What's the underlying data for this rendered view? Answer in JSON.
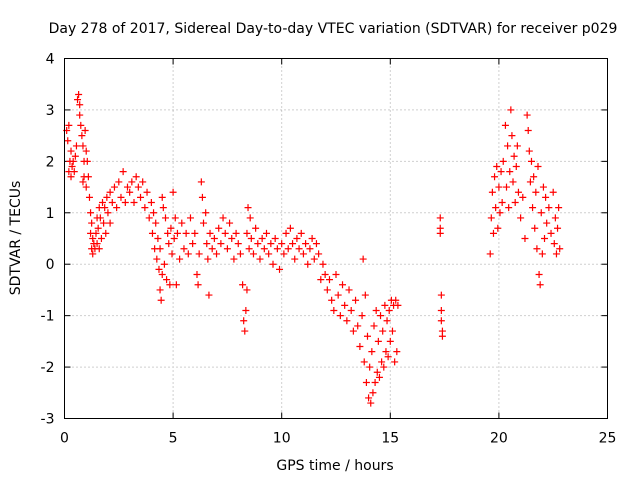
{
  "chart_data": {
    "type": "scatter",
    "title": "Day 278 of 2017, Sidereal Day-to-day VTEC variation (SDTVAR) for receiver p029",
    "xlabel": "GPS time / hours",
    "ylabel": "SDTVAR / TECUs",
    "xlim": [
      0,
      25
    ],
    "ylim": [
      -3,
      4
    ],
    "xticks": [
      0,
      5,
      10,
      15,
      20,
      25
    ],
    "yticks": [
      -3,
      -2,
      -1,
      0,
      1,
      2,
      3,
      4
    ],
    "grid": true,
    "marker": "+",
    "color": "#ff0000",
    "series": [
      {
        "name": "SDTVAR",
        "points": [
          [
            0.1,
            2.6
          ],
          [
            0.15,
            2.4
          ],
          [
            0.2,
            2.7
          ],
          [
            0.2,
            1.8
          ],
          [
            0.25,
            2.0
          ],
          [
            0.3,
            2.2
          ],
          [
            0.3,
            1.7
          ],
          [
            0.35,
            1.9
          ],
          [
            0.4,
            2.0
          ],
          [
            0.45,
            1.8
          ],
          [
            0.5,
            2.1
          ],
          [
            0.55,
            2.3
          ],
          [
            0.6,
            3.2
          ],
          [
            0.65,
            3.3
          ],
          [
            0.7,
            3.1
          ],
          [
            0.7,
            2.9
          ],
          [
            0.75,
            2.7
          ],
          [
            0.8,
            2.5
          ],
          [
            0.85,
            2.3
          ],
          [
            0.85,
            1.6
          ],
          [
            0.9,
            2.0
          ],
          [
            0.9,
            1.7
          ],
          [
            0.95,
            2.6
          ],
          [
            1.0,
            2.2
          ],
          [
            1.0,
            1.5
          ],
          [
            1.05,
            2.0
          ],
          [
            1.1,
            1.7
          ],
          [
            1.15,
            1.3
          ],
          [
            1.2,
            1.0
          ],
          [
            1.2,
            0.6
          ],
          [
            1.25,
            0.8
          ],
          [
            1.25,
            0.3
          ],
          [
            1.3,
            0.5
          ],
          [
            1.3,
            0.2
          ],
          [
            1.35,
            0.4
          ],
          [
            1.4,
            0.3
          ],
          [
            1.45,
            0.6
          ],
          [
            1.5,
            0.9
          ],
          [
            1.5,
            0.4
          ],
          [
            1.55,
            0.7
          ],
          [
            1.6,
            1.1
          ],
          [
            1.6,
            0.3
          ],
          [
            1.65,
            0.9
          ],
          [
            1.7,
            0.5
          ],
          [
            1.75,
            1.2
          ],
          [
            1.8,
            0.8
          ],
          [
            1.85,
            1.1
          ],
          [
            1.9,
            0.6
          ],
          [
            1.95,
            1.3
          ],
          [
            2.0,
            1.0
          ],
          [
            2.1,
            1.4
          ],
          [
            2.1,
            0.8
          ],
          [
            2.2,
            1.2
          ],
          [
            2.3,
            1.5
          ],
          [
            2.4,
            1.1
          ],
          [
            2.5,
            1.6
          ],
          [
            2.6,
            1.3
          ],
          [
            2.7,
            1.8
          ],
          [
            2.8,
            1.2
          ],
          [
            2.9,
            1.5
          ],
          [
            3.0,
            1.4
          ],
          [
            3.1,
            1.6
          ],
          [
            3.2,
            1.2
          ],
          [
            3.3,
            1.7
          ],
          [
            3.4,
            1.5
          ],
          [
            3.5,
            1.3
          ],
          [
            3.6,
            1.6
          ],
          [
            3.7,
            1.1
          ],
          [
            3.8,
            1.4
          ],
          [
            3.9,
            0.9
          ],
          [
            4.0,
            1.2
          ],
          [
            4.05,
            0.6
          ],
          [
            4.1,
            1.0
          ],
          [
            4.15,
            0.3
          ],
          [
            4.2,
            0.8
          ],
          [
            4.25,
            0.1
          ],
          [
            4.3,
            0.5
          ],
          [
            4.35,
            -0.1
          ],
          [
            4.4,
            0.3
          ],
          [
            4.4,
            -0.5
          ],
          [
            4.45,
            -0.7
          ],
          [
            4.5,
            1.3
          ],
          [
            4.5,
            -0.2
          ],
          [
            4.55,
            1.1
          ],
          [
            4.6,
            0.0
          ],
          [
            4.65,
            0.9
          ],
          [
            4.7,
            -0.3
          ],
          [
            4.75,
            0.6
          ],
          [
            4.8,
            0.4
          ],
          [
            4.85,
            -0.4
          ],
          [
            4.9,
            0.7
          ],
          [
            4.95,
            0.2
          ],
          [
            5.0,
            1.4
          ],
          [
            5.05,
            0.5
          ],
          [
            5.1,
            0.9
          ],
          [
            5.15,
            -0.4
          ],
          [
            5.2,
            0.6
          ],
          [
            5.3,
            0.1
          ],
          [
            5.4,
            0.8
          ],
          [
            5.5,
            0.3
          ],
          [
            5.6,
            0.6
          ],
          [
            5.7,
            0.2
          ],
          [
            5.8,
            0.9
          ],
          [
            5.9,
            0.4
          ],
          [
            6.0,
            0.6
          ],
          [
            6.1,
            -0.2
          ],
          [
            6.15,
            -0.4
          ],
          [
            6.2,
            0.2
          ],
          [
            6.3,
            1.6
          ],
          [
            6.35,
            1.3
          ],
          [
            6.4,
            0.8
          ],
          [
            6.5,
            1.0
          ],
          [
            6.55,
            0.4
          ],
          [
            6.6,
            0.1
          ],
          [
            6.65,
            -0.6
          ],
          [
            6.7,
            0.6
          ],
          [
            6.8,
            0.3
          ],
          [
            6.9,
            0.5
          ],
          [
            7.0,
            0.2
          ],
          [
            7.1,
            0.7
          ],
          [
            7.2,
            0.4
          ],
          [
            7.3,
            0.9
          ],
          [
            7.4,
            0.6
          ],
          [
            7.5,
            0.3
          ],
          [
            7.6,
            0.8
          ],
          [
            7.7,
            0.5
          ],
          [
            7.8,
            0.1
          ],
          [
            7.9,
            0.6
          ],
          [
            8.0,
            0.4
          ],
          [
            8.1,
            0.2
          ],
          [
            8.2,
            -0.4
          ],
          [
            8.25,
            -1.1
          ],
          [
            8.3,
            -1.3
          ],
          [
            8.35,
            -0.9
          ],
          [
            8.4,
            -0.5
          ],
          [
            8.4,
            0.6
          ],
          [
            8.45,
            1.1
          ],
          [
            8.5,
            0.3
          ],
          [
            8.55,
            0.9
          ],
          [
            8.6,
            0.5
          ],
          [
            8.7,
            0.2
          ],
          [
            8.8,
            0.7
          ],
          [
            8.9,
            0.4
          ],
          [
            9.0,
            0.1
          ],
          [
            9.1,
            0.5
          ],
          [
            9.2,
            0.3
          ],
          [
            9.3,
            0.6
          ],
          [
            9.4,
            0.2
          ],
          [
            9.5,
            0.4
          ],
          [
            9.6,
            0.0
          ],
          [
            9.7,
            0.5
          ],
          [
            9.8,
            0.3
          ],
          [
            9.9,
            -0.1
          ],
          [
            10.0,
            0.4
          ],
          [
            10.1,
            0.2
          ],
          [
            10.2,
            0.6
          ],
          [
            10.3,
            0.3
          ],
          [
            10.4,
            0.7
          ],
          [
            10.5,
            0.4
          ],
          [
            10.6,
            0.1
          ],
          [
            10.7,
            0.5
          ],
          [
            10.8,
            0.3
          ],
          [
            10.9,
            0.6
          ],
          [
            11.0,
            0.2
          ],
          [
            11.1,
            0.4
          ],
          [
            11.2,
            0.0
          ],
          [
            11.3,
            0.3
          ],
          [
            11.4,
            0.5
          ],
          [
            11.5,
            0.1
          ],
          [
            11.6,
            0.4
          ],
          [
            11.7,
            0.2
          ],
          [
            11.8,
            -0.3
          ],
          [
            11.9,
            0.0
          ],
          [
            12.0,
            -0.2
          ],
          [
            12.1,
            -0.5
          ],
          [
            12.2,
            -0.3
          ],
          [
            12.3,
            -0.7
          ],
          [
            12.4,
            -0.9
          ],
          [
            12.5,
            -0.2
          ],
          [
            12.6,
            -0.6
          ],
          [
            12.7,
            -1.0
          ],
          [
            12.8,
            -0.4
          ],
          [
            12.9,
            -0.8
          ],
          [
            13.0,
            -1.1
          ],
          [
            13.1,
            -0.5
          ],
          [
            13.2,
            -0.9
          ],
          [
            13.3,
            -1.3
          ],
          [
            13.4,
            -0.7
          ],
          [
            13.5,
            -1.2
          ],
          [
            13.6,
            -1.6
          ],
          [
            13.7,
            -1.0
          ],
          [
            13.75,
            0.1
          ],
          [
            13.8,
            -1.9
          ],
          [
            13.85,
            -0.6
          ],
          [
            13.9,
            -2.3
          ],
          [
            13.95,
            -1.4
          ],
          [
            14.0,
            -2.6
          ],
          [
            14.05,
            -2.0
          ],
          [
            14.1,
            -2.7
          ],
          [
            14.15,
            -1.7
          ],
          [
            14.2,
            -2.5
          ],
          [
            14.25,
            -1.2
          ],
          [
            14.3,
            -2.3
          ],
          [
            14.35,
            -0.9
          ],
          [
            14.4,
            -2.1
          ],
          [
            14.45,
            -1.5
          ],
          [
            14.5,
            -2.2
          ],
          [
            14.55,
            -1.0
          ],
          [
            14.6,
            -1.9
          ],
          [
            14.65,
            -1.3
          ],
          [
            14.7,
            -2.0
          ],
          [
            14.75,
            -0.8
          ],
          [
            14.8,
            -1.7
          ],
          [
            14.85,
            -1.1
          ],
          [
            14.9,
            -1.8
          ],
          [
            14.95,
            -0.9
          ],
          [
            15.0,
            -1.5
          ],
          [
            15.05,
            -0.7
          ],
          [
            15.1,
            -1.3
          ],
          [
            15.15,
            -0.8
          ],
          [
            15.2,
            -1.9
          ],
          [
            15.25,
            -0.7
          ],
          [
            15.3,
            -1.7
          ],
          [
            15.35,
            -0.8
          ],
          [
            17.3,
            0.9
          ],
          [
            17.3,
            0.7
          ],
          [
            17.3,
            0.6
          ],
          [
            17.35,
            -0.6
          ],
          [
            17.35,
            -0.9
          ],
          [
            17.35,
            -1.1
          ],
          [
            17.4,
            -1.3
          ],
          [
            17.4,
            -1.4
          ],
          [
            19.6,
            0.2
          ],
          [
            19.65,
            0.9
          ],
          [
            19.7,
            1.4
          ],
          [
            19.75,
            0.6
          ],
          [
            19.8,
            1.7
          ],
          [
            19.85,
            1.1
          ],
          [
            19.9,
            1.9
          ],
          [
            19.95,
            0.7
          ],
          [
            20.0,
            1.5
          ],
          [
            20.05,
            1.0
          ],
          [
            20.1,
            1.8
          ],
          [
            20.15,
            1.2
          ],
          [
            20.2,
            2.0
          ],
          [
            20.3,
            2.7
          ],
          [
            20.35,
            1.5
          ],
          [
            20.4,
            2.3
          ],
          [
            20.45,
            1.1
          ],
          [
            20.5,
            1.8
          ],
          [
            20.55,
            3.0
          ],
          [
            20.6,
            2.5
          ],
          [
            20.65,
            1.6
          ],
          [
            20.7,
            2.1
          ],
          [
            20.75,
            1.2
          ],
          [
            20.8,
            1.9
          ],
          [
            20.85,
            2.3
          ],
          [
            20.9,
            1.4
          ],
          [
            21.0,
            0.9
          ],
          [
            21.1,
            1.3
          ],
          [
            21.2,
            0.5
          ],
          [
            21.3,
            2.9
          ],
          [
            21.35,
            2.6
          ],
          [
            21.4,
            2.2
          ],
          [
            21.45,
            1.6
          ],
          [
            21.5,
            2.0
          ],
          [
            21.55,
            1.1
          ],
          [
            21.6,
            1.7
          ],
          [
            21.65,
            0.7
          ],
          [
            21.7,
            1.4
          ],
          [
            21.75,
            0.3
          ],
          [
            21.8,
            1.9
          ],
          [
            21.85,
            -0.2
          ],
          [
            21.9,
            -0.4
          ],
          [
            21.95,
            1.0
          ],
          [
            22.0,
            0.2
          ],
          [
            22.05,
            1.5
          ],
          [
            22.1,
            0.5
          ],
          [
            22.15,
            1.3
          ],
          [
            22.2,
            0.8
          ],
          [
            22.3,
            1.1
          ],
          [
            22.4,
            0.6
          ],
          [
            22.5,
            1.4
          ],
          [
            22.55,
            0.4
          ],
          [
            22.6,
            0.9
          ],
          [
            22.65,
            0.2
          ],
          [
            22.7,
            0.7
          ],
          [
            22.75,
            1.1
          ],
          [
            22.8,
            0.3
          ]
        ]
      }
    ]
  }
}
